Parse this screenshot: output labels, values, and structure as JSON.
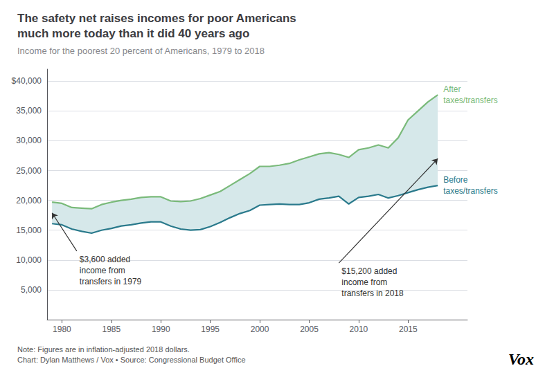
{
  "chart_data": {
    "type": "line",
    "title": "The safety net raises incomes for poor Americans\nmuch more today than it did 40 years ago",
    "subtitle": "Income for the poorest 20 percent of Americans, 1979 to 2018",
    "note": "Note: Figures are in inflation-adjusted 2018 dollars.",
    "source": "Chart: Dylan Matthews / Vox • Source: Congressional Budget Office",
    "logo": "Vox",
    "x": [
      1979,
      1980,
      1981,
      1982,
      1983,
      1984,
      1985,
      1986,
      1987,
      1988,
      1989,
      1990,
      1991,
      1992,
      1993,
      1994,
      1995,
      1996,
      1997,
      1998,
      1999,
      2000,
      2001,
      2002,
      2003,
      2004,
      2005,
      2006,
      2007,
      2008,
      2009,
      2010,
      2011,
      2012,
      2013,
      2014,
      2015,
      2016,
      2017,
      2018
    ],
    "series": [
      {
        "name": "After\ntaxes/transfers",
        "color": "#7aba7a",
        "values": [
          19700,
          19500,
          18800,
          18700,
          18600,
          19300,
          19700,
          20000,
          20200,
          20500,
          20600,
          20600,
          19900,
          19800,
          19900,
          20300,
          20900,
          21500,
          22500,
          23500,
          24500,
          25700,
          25700,
          25900,
          26200,
          26800,
          27300,
          27800,
          28000,
          27700,
          27200,
          28500,
          28800,
          29300,
          28800,
          30500,
          33500,
          35000,
          36500,
          37700
        ]
      },
      {
        "name": "Before\ntaxes/transfers",
        "color": "#2a7a8c",
        "values": [
          16100,
          15900,
          15200,
          14800,
          14500,
          15000,
          15300,
          15700,
          15900,
          16200,
          16400,
          16400,
          15700,
          15200,
          15000,
          15100,
          15600,
          16300,
          17100,
          17800,
          18300,
          19200,
          19300,
          19400,
          19300,
          19300,
          19600,
          20200,
          20400,
          20700,
          19400,
          20500,
          20700,
          21000,
          20400,
          20800,
          21300,
          21800,
          22200,
          22500
        ]
      }
    ],
    "fill_color": "#d6e8ea",
    "xlim": [
      1978.5,
      2021
    ],
    "xticks": [
      1980,
      1985,
      1990,
      1995,
      2000,
      2005,
      2010,
      2015
    ],
    "ylim": [
      0,
      42000
    ],
    "yticks": [
      {
        "value": 0,
        "label": ""
      },
      {
        "value": 5000,
        "label": "5,000"
      },
      {
        "value": 10000,
        "label": "10,000"
      },
      {
        "value": 15000,
        "label": "15,000"
      },
      {
        "value": 20000,
        "label": "20,000"
      },
      {
        "value": 25000,
        "label": "25,000"
      },
      {
        "value": 30000,
        "label": "30,000"
      },
      {
        "value": 35000,
        "label": "35,000"
      },
      {
        "value": 40000,
        "label": "$40,000"
      }
    ],
    "grid": true,
    "annotations": [
      {
        "text": "$3,600 added\nincome from\ntransfers in 1979",
        "xy": [
          1979,
          17900
        ],
        "xytext": [
          1981.5,
          11500
        ],
        "color": "#333333"
      },
      {
        "text": "$15,200 added\nincome from\ntransfers in 2018",
        "xy": [
          2018,
          27000
        ],
        "xytext": [
          2008,
          9500
        ],
        "color": "#333333"
      }
    ]
  }
}
